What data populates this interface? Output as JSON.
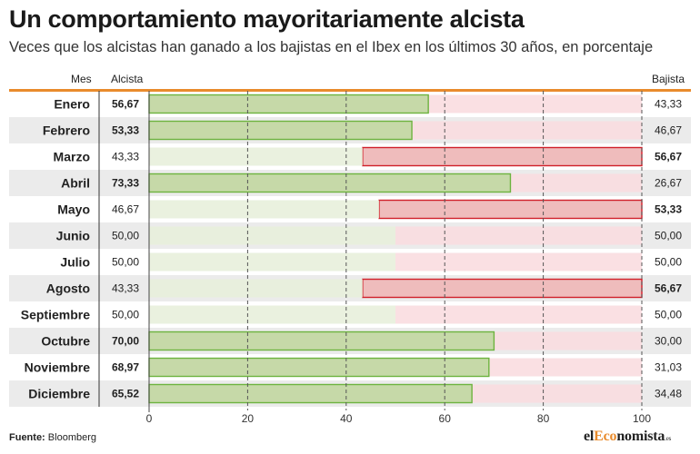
{
  "header": {
    "title": "Un comportamiento mayoritariamente alcista",
    "subtitle": "Veces que los alcistas han ganado a los bajistas en el Ibex en los últimos 30 años, en porcentaje",
    "col_mes": "Mes",
    "col_alcista": "Alcista",
    "col_bajista": "Bajista"
  },
  "footer": {
    "source_label": "Fuente:",
    "source_value": "Bloomberg",
    "logo_el": "el",
    "logo_eco": "Eco",
    "logo_rest": "nomista",
    "logo_suffix": ".es"
  },
  "colors": {
    "alcista_winner_fill": "#c6d9a8",
    "alcista_winner_stroke": "#6db33f",
    "alcista_track": "#e8efdc",
    "bajista_winner_fill": "#efbcbc",
    "bajista_winner_stroke": "#d0202a",
    "bajista_track": "#f9dde0",
    "row_shade": "#ebebeb",
    "accent": "#e98b2c"
  },
  "chart_data": {
    "type": "bar",
    "orientation": "horizontal-stacked-100",
    "categories": [
      "Enero",
      "Febrero",
      "Marzo",
      "Abril",
      "Mayo",
      "Junio",
      "Julio",
      "Agosto",
      "Septiembre",
      "Octubre",
      "Noviembre",
      "Diciembre"
    ],
    "series": [
      {
        "name": "Alcista",
        "values": [
          56.67,
          53.33,
          43.33,
          73.33,
          46.67,
          50.0,
          50.0,
          43.33,
          50.0,
          70.0,
          68.97,
          65.52
        ],
        "labels": [
          "56,67",
          "53,33",
          "43,33",
          "73,33",
          "46,67",
          "50,00",
          "50,00",
          "43,33",
          "50,00",
          "70,00",
          "68,97",
          "65,52"
        ]
      },
      {
        "name": "Bajista",
        "values": [
          43.33,
          46.67,
          56.67,
          26.67,
          53.33,
          50.0,
          50.0,
          56.67,
          50.0,
          30.0,
          31.03,
          34.48
        ],
        "labels": [
          "43,33",
          "46,67",
          "56,67",
          "26,67",
          "53,33",
          "50,00",
          "50,00",
          "56,67",
          "50,00",
          "30,00",
          "31,03",
          "34,48"
        ]
      }
    ],
    "xlim": [
      0,
      100
    ],
    "xticks": [
      0,
      20,
      40,
      60,
      80,
      100
    ],
    "grid": "vertical-dashed"
  }
}
